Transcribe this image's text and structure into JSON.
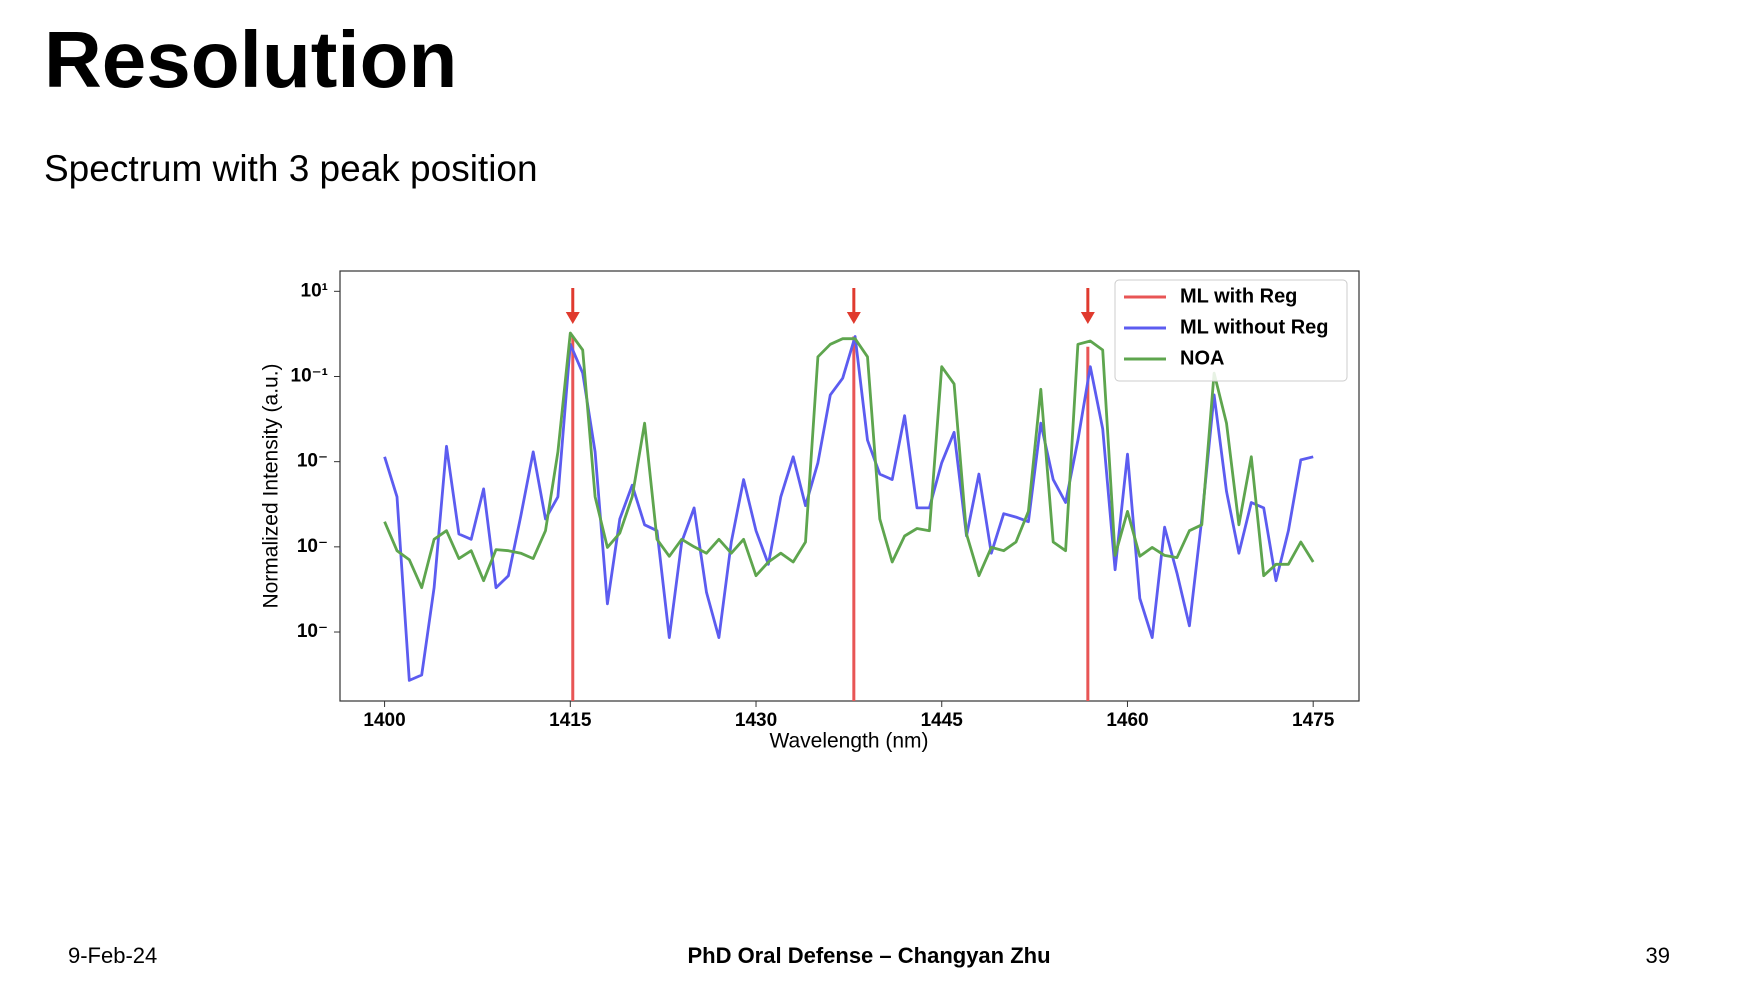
{
  "header": {
    "title": "Resolution",
    "subtitle": "Spectrum with 3 peak position"
  },
  "chart_data": {
    "type": "line",
    "yscale": "log",
    "grid": false,
    "legend": "upper right",
    "xlabel": "Wavelength (nm)",
    "ylabel": "Normalized Intensity (a.u.)",
    "x": [
      1400,
      1401,
      1402,
      1403,
      1404,
      1405,
      1406,
      1407,
      1408,
      1409,
      1410,
      1411,
      1412,
      1413,
      1414,
      1415,
      1416,
      1417,
      1418,
      1419,
      1420,
      1421,
      1422,
      1423,
      1424,
      1425,
      1426,
      1427,
      1428,
      1429,
      1430,
      1431,
      1432,
      1433,
      1434,
      1435,
      1436,
      1437,
      1438,
      1439,
      1440,
      1441,
      1442,
      1443,
      1444,
      1445,
      1446,
      1447,
      1448,
      1449,
      1450,
      1451,
      1452,
      1453,
      1454,
      1455,
      1456,
      1457,
      1458,
      1459,
      1460,
      1461,
      1462,
      1463,
      1464,
      1465,
      1466,
      1467,
      1468,
      1469,
      1470,
      1471,
      1472,
      1473,
      1474,
      1475
    ],
    "xlim": [
      1396.4,
      1478.7
    ],
    "xticks": [
      1400,
      1415,
      1430,
      1445,
      1460,
      1475
    ],
    "ylim": [
      2.4e-09,
      30
    ],
    "yticks": [
      {
        "value": 10,
        "label": "10¹"
      },
      {
        "value": 0.1,
        "label": "10⁻¹"
      },
      {
        "value": 0.001,
        "label": "10⁻"
      },
      {
        "value": 1e-05,
        "label": "10⁻"
      },
      {
        "value": 1e-07,
        "label": "10⁻"
      }
    ],
    "series": [
      {
        "name": "ML with Reg",
        "color": "#e85555",
        "drawstyle": "stem",
        "x": [
          1415.2,
          1437.9,
          1456.8
        ],
        "values": [
          0.87,
          0.87,
          0.5
        ]
      },
      {
        "name": "ML without Reg",
        "color": "#5c5cf0",
        "values": [
          0.0013,
          0.00015,
          7.3e-09,
          9.8e-09,
          1.1e-06,
          0.0023,
          2e-05,
          1.5e-05,
          0.00023,
          1.1e-06,
          2.1e-06,
          5.3e-05,
          0.0017,
          4.5e-05,
          0.00015,
          0.57,
          0.12,
          0.0017,
          4.6e-07,
          4.5e-05,
          0.00028,
          3.3e-05,
          2.4e-05,
          7.4e-08,
          1.3e-05,
          8.2e-05,
          8.5e-07,
          7.4e-08,
          1.3e-05,
          0.00038,
          2.4e-05,
          3.9e-06,
          0.00015,
          0.0013,
          9.3e-05,
          0.00094,
          0.037,
          0.091,
          0.87,
          0.0032,
          0.00051,
          0.00038,
          0.012,
          8.2e-05,
          8.2e-05,
          0.00094,
          0.0049,
          1.8e-05,
          0.00051,
          7.1e-06,
          6e-05,
          5e-05,
          3.9e-05,
          0.008,
          0.00038,
          0.00011,
          0.0032,
          0.17,
          0.0059,
          2.9e-06,
          0.0015,
          6.2e-07,
          7.4e-08,
          2.9e-05,
          2.4e-06,
          1.4e-07,
          4.5e-05,
          0.037,
          0.0002,
          7.1e-06,
          0.00011,
          8.2e-05,
          1.6e-06,
          2.4e-05,
          0.0011,
          0.0013
        ]
      },
      {
        "name": "NOA",
        "color": "#5ea54e",
        "values": [
          3.9e-05,
          8.1e-06,
          5e-06,
          1.1e-06,
          1.5e-05,
          2.4e-05,
          5.3e-06,
          8.1e-06,
          1.6e-06,
          8.6e-06,
          8.1e-06,
          7.1e-06,
          5.3e-06,
          2.4e-05,
          0.0017,
          1.05,
          0.42,
          0.00015,
          9.7e-06,
          2.1e-05,
          0.00015,
          0.008,
          1.5e-05,
          6e-06,
          1.5e-05,
          1e-05,
          7.1e-06,
          1.5e-05,
          7.1e-06,
          1.5e-05,
          2.1e-06,
          4.4e-06,
          7.1e-06,
          4.4e-06,
          1.3e-05,
          0.29,
          0.57,
          0.77,
          0.77,
          0.29,
          4.5e-05,
          4.4e-06,
          1.8e-05,
          2.7e-05,
          2.4e-05,
          0.17,
          0.067,
          2e-05,
          2.1e-06,
          9.7e-06,
          8.1e-06,
          1.3e-05,
          6.8e-05,
          0.05,
          1.3e-05,
          8.1e-06,
          0.57,
          0.68,
          0.42,
          6.3e-06,
          6.8e-05,
          6e-06,
          9.7e-06,
          6.3e-06,
          5.6e-06,
          2.4e-05,
          3.3e-05,
          0.12,
          0.008,
          3.3e-05,
          0.0013,
          2.1e-06,
          3.9e-06,
          3.9e-06,
          1.3e-05,
          4.4e-06
        ]
      }
    ]
  },
  "footer": {
    "date": "9-Feb-24",
    "center": "PhD Oral Defense – Changyan Zhu",
    "page": 39
  }
}
